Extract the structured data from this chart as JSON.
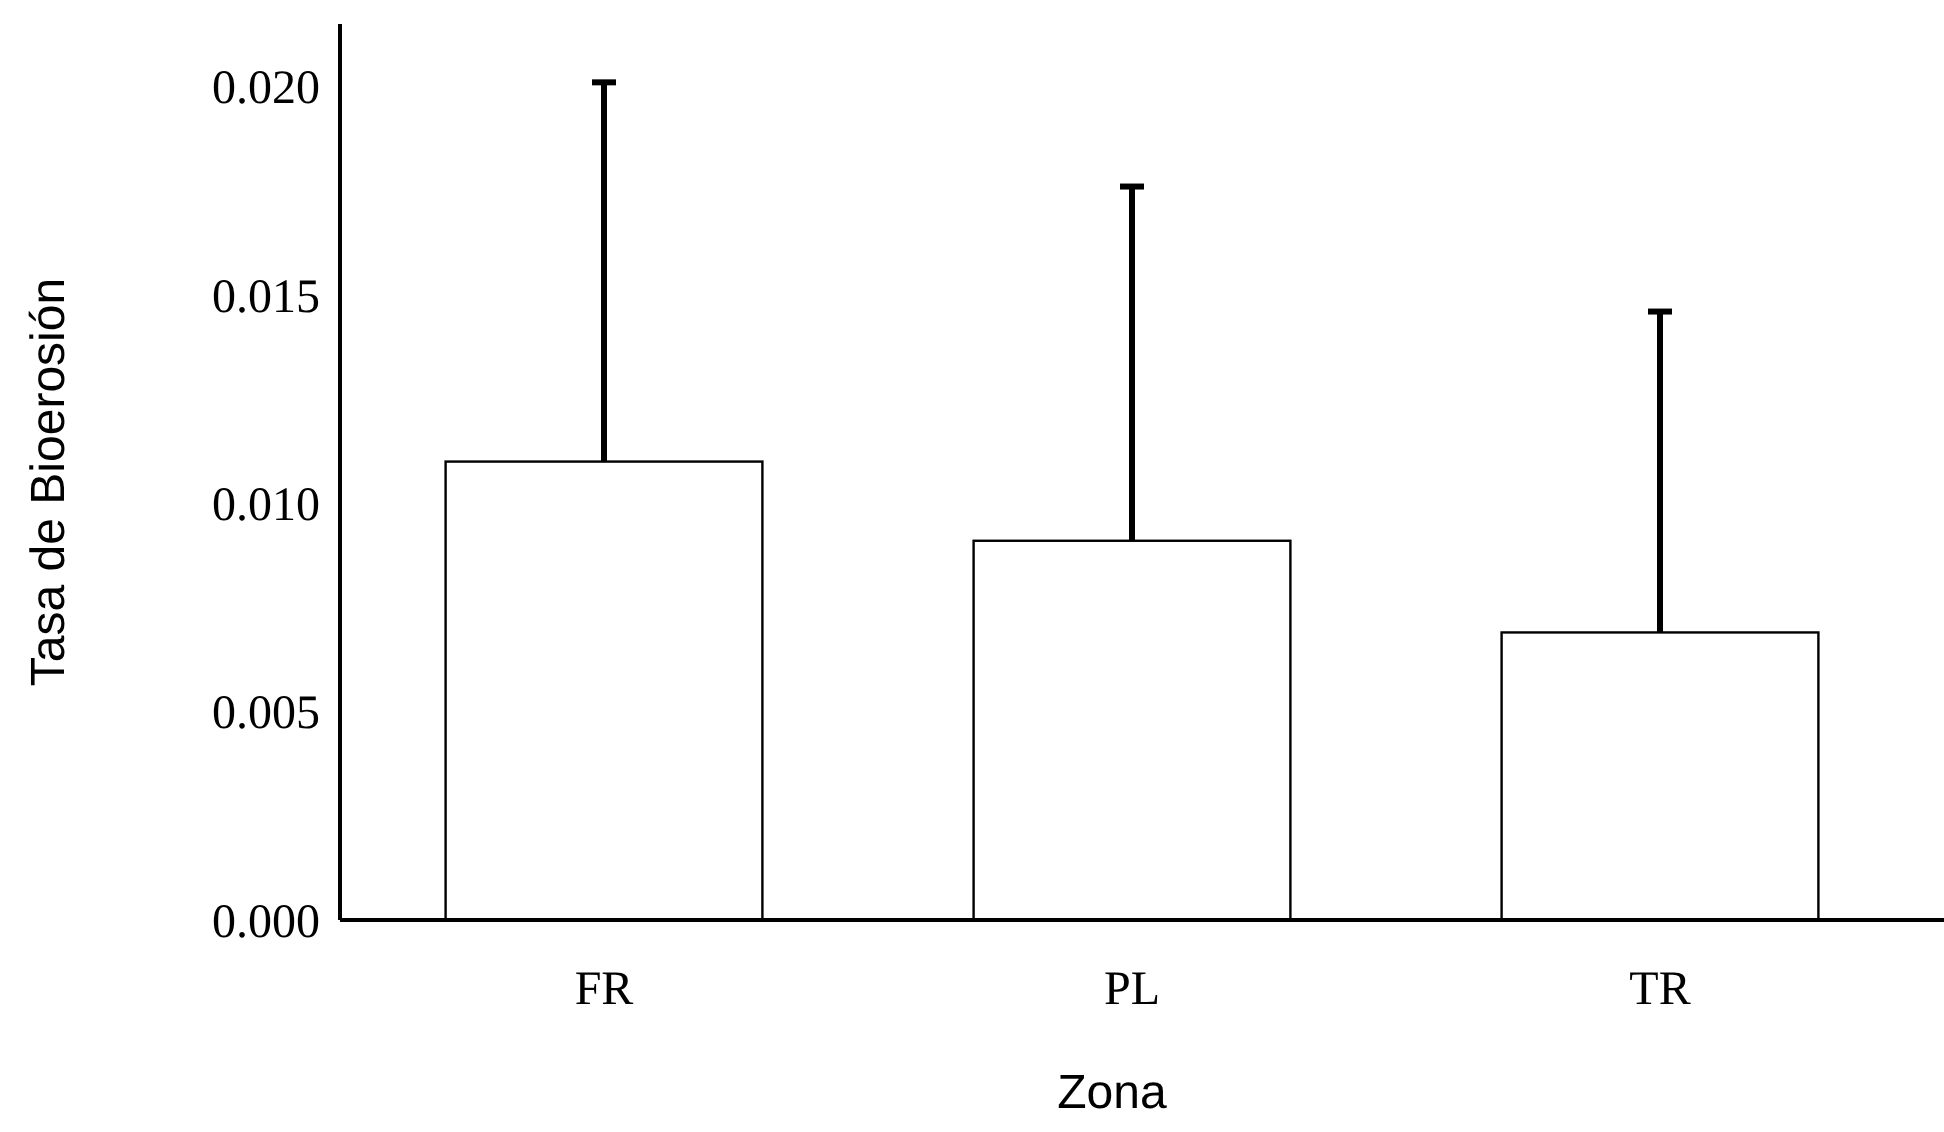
{
  "chart_data": {
    "type": "bar",
    "xlabel": "Zona",
    "ylabel": "Tasa de Bioerosión",
    "categories": [
      "FR",
      "PL",
      "TR"
    ],
    "values": [
      0.011,
      0.0091,
      0.0069
    ],
    "errors": [
      [
        0.011,
        0.0201
      ],
      [
        0.0091,
        0.0176
      ],
      [
        0.0069,
        0.0146
      ]
    ],
    "color": "#ffffff",
    "ylim": [
      0,
      0.0215
    ],
    "yticks": [
      {
        "value": 0,
        "label": "0.000"
      },
      {
        "value": 0.005,
        "label": "0.005"
      },
      {
        "value": 0.01,
        "label": "0.010"
      },
      {
        "value": 0.015,
        "label": "0.015"
      },
      {
        "value": 0.02,
        "label": "0.020"
      }
    ],
    "grid": false
  }
}
